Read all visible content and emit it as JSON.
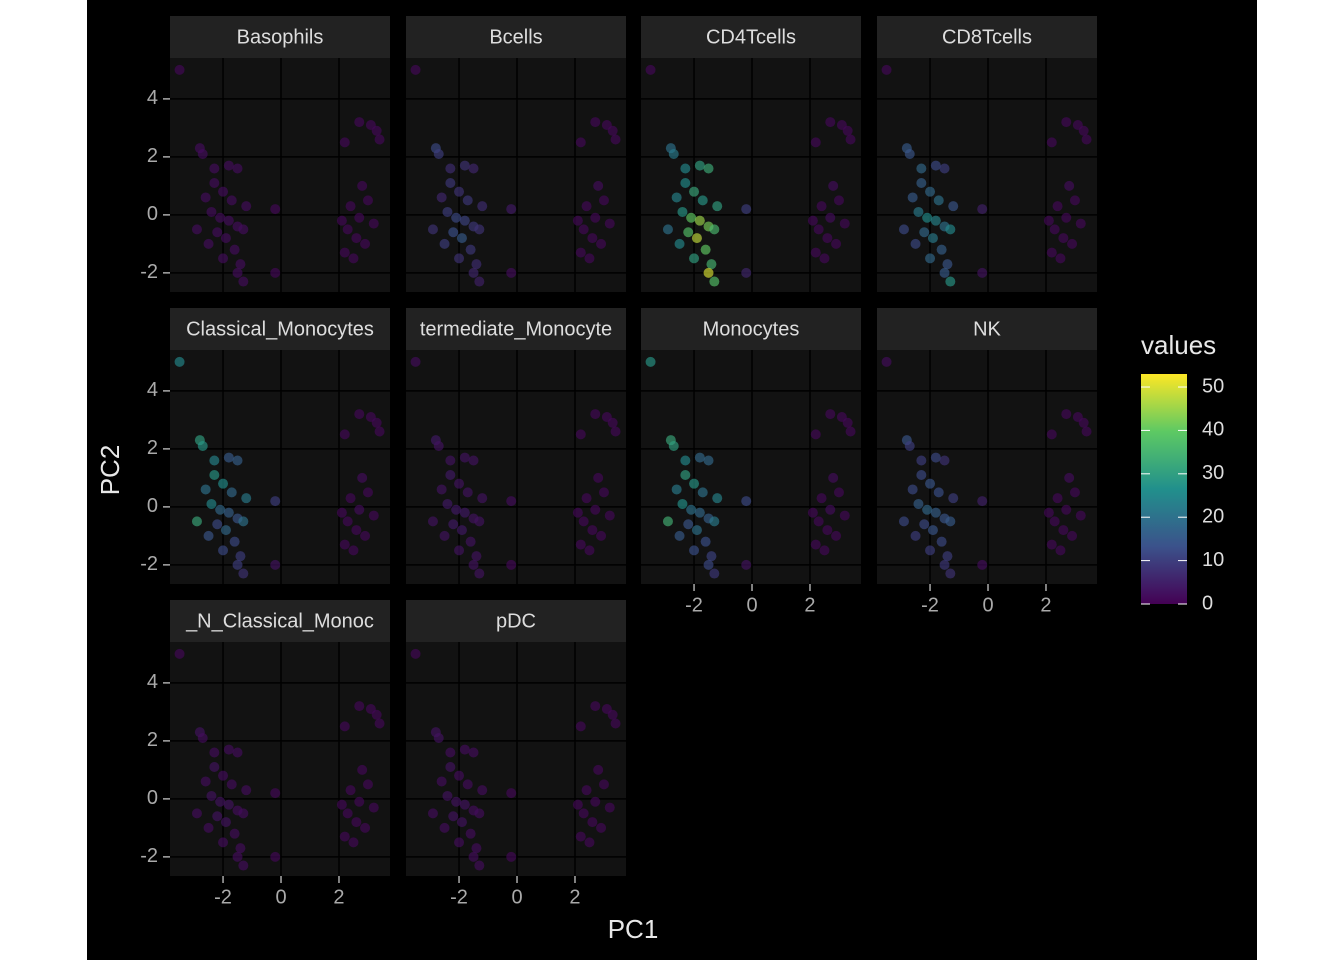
{
  "chart_data": {
    "type": "scatter",
    "xlabel": "PC1",
    "ylabel": "PC2",
    "xlim": [
      -3.83,
      3.76
    ],
    "ylim": [
      -2.66,
      5.41
    ],
    "xticks": [
      -2,
      0,
      2
    ],
    "yticks": [
      -2,
      0,
      2,
      4
    ],
    "grid": true,
    "x": [
      -3.5,
      -2.8,
      -2.7,
      -2.3,
      -1.8,
      -1.5,
      -2.3,
      -2.0,
      -2.6,
      -1.7,
      -1.2,
      -0.2,
      -2.9,
      -2.4,
      -2.1,
      -1.8,
      -1.5,
      -2.2,
      -1.9,
      -1.3,
      -2.5,
      -1.6,
      -1.4,
      -2.0,
      -1.5,
      -1.3,
      -0.2,
      2.7,
      3.1,
      3.3,
      3.4,
      2.2,
      2.8,
      3.0,
      2.4,
      2.7,
      3.2,
      2.3,
      2.6,
      2.9,
      2.2,
      2.5,
      2.1
    ],
    "y": [
      5.0,
      2.3,
      2.1,
      1.6,
      1.7,
      1.6,
      1.1,
      0.8,
      0.6,
      0.5,
      0.3,
      0.2,
      -0.5,
      0.1,
      -0.1,
      -0.2,
      -0.4,
      -0.6,
      -0.8,
      -0.5,
      -1.0,
      -1.2,
      -1.7,
      -1.5,
      -2.0,
      -2.3,
      -2.0,
      3.2,
      3.1,
      2.9,
      2.6,
      2.5,
      1.0,
      0.5,
      0.3,
      -0.1,
      -0.3,
      -0.5,
      -0.8,
      -1.0,
      -1.3,
      -1.5,
      -0.2
    ],
    "colorbar": {
      "title": "values",
      "lim": [
        0,
        53
      ],
      "ticks": [
        0,
        10,
        20,
        30,
        40,
        50
      ]
    },
    "facets": [
      {
        "title": "Basophils",
        "values": [
          1,
          2,
          2,
          2,
          2,
          2,
          2,
          2,
          2,
          2,
          2,
          1,
          2,
          2,
          2,
          2,
          2,
          2,
          2,
          2,
          2,
          2,
          2,
          2,
          2,
          2,
          1,
          1,
          1,
          1,
          1,
          1,
          1,
          1,
          1,
          1,
          1,
          1,
          1,
          1,
          1,
          1,
          1
        ]
      },
      {
        "title": "Bcells",
        "values": [
          1,
          12,
          10,
          7,
          8,
          6,
          9,
          8,
          6,
          9,
          7,
          4,
          8,
          10,
          12,
          11,
          9,
          13,
          15,
          8,
          10,
          9,
          7,
          8,
          6,
          5,
          2,
          1,
          1,
          1,
          1,
          1,
          2,
          1,
          1,
          1,
          1,
          1,
          1,
          1,
          1,
          1,
          1
        ]
      },
      {
        "title": "CD4Tcells",
        "values": [
          1,
          20,
          22,
          25,
          30,
          33,
          26,
          32,
          24,
          28,
          30,
          10,
          20,
          28,
          40,
          45,
          42,
          38,
          48,
          36,
          25,
          40,
          35,
          30,
          50,
          38,
          6,
          1,
          1,
          1,
          1,
          1,
          2,
          1,
          1,
          2,
          1,
          1,
          1,
          1,
          1,
          1,
          1
        ]
      },
      {
        "title": "CD8Tcells",
        "values": [
          1,
          15,
          14,
          18,
          12,
          10,
          16,
          18,
          15,
          20,
          14,
          5,
          12,
          22,
          26,
          24,
          20,
          18,
          22,
          25,
          12,
          16,
          14,
          18,
          15,
          28,
          3,
          1,
          1,
          1,
          1,
          1,
          2,
          1,
          1,
          1,
          1,
          1,
          1,
          1,
          1,
          1,
          1
        ]
      },
      {
        "title": "Classical_Monocytes",
        "values": [
          25,
          30,
          28,
          24,
          15,
          16,
          28,
          26,
          20,
          18,
          22,
          10,
          32,
          25,
          18,
          16,
          14,
          12,
          18,
          20,
          14,
          12,
          10,
          12,
          10,
          8,
          3,
          1,
          1,
          1,
          1,
          1,
          2,
          1,
          1,
          2,
          1,
          1,
          1,
          1,
          1,
          1,
          1
        ]
      },
      {
        "title": "termediate_Monocyte",
        "values": [
          2,
          4,
          3,
          3,
          3,
          3,
          4,
          3,
          3,
          3,
          3,
          2,
          3,
          4,
          4,
          4,
          3,
          4,
          4,
          3,
          3,
          3,
          3,
          3,
          3,
          3,
          1,
          1,
          1,
          1,
          1,
          1,
          1,
          1,
          1,
          1,
          1,
          1,
          1,
          1,
          1,
          1,
          1
        ]
      },
      {
        "title": "Monocytes",
        "values": [
          28,
          32,
          30,
          25,
          18,
          18,
          30,
          28,
          22,
          20,
          24,
          12,
          34,
          27,
          20,
          18,
          16,
          14,
          20,
          22,
          15,
          13,
          11,
          13,
          12,
          9,
          3,
          1,
          1,
          1,
          1,
          1,
          2,
          1,
          1,
          2,
          1,
          1,
          1,
          1,
          1,
          1,
          1
        ]
      },
      {
        "title": "NK",
        "values": [
          2,
          14,
          10,
          10,
          12,
          8,
          12,
          14,
          12,
          13,
          10,
          5,
          12,
          16,
          18,
          16,
          14,
          12,
          14,
          15,
          10,
          12,
          10,
          10,
          9,
          8,
          2,
          1,
          1,
          1,
          1,
          1,
          2,
          1,
          1,
          1,
          1,
          1,
          1,
          1,
          1,
          1,
          1
        ]
      },
      {
        "title": "_N_Classical_Monoc",
        "values": [
          1,
          3,
          2,
          2,
          2,
          2,
          3,
          2,
          2,
          2,
          2,
          1,
          2,
          3,
          3,
          3,
          2,
          3,
          3,
          2,
          2,
          2,
          2,
          2,
          2,
          2,
          1,
          1,
          1,
          1,
          1,
          1,
          1,
          1,
          1,
          1,
          1,
          1,
          1,
          1,
          1,
          1,
          1
        ]
      },
      {
        "title": "pDC",
        "values": [
          1,
          3,
          3,
          2,
          2,
          2,
          3,
          2,
          2,
          2,
          2,
          1,
          2,
          3,
          3,
          3,
          2,
          3,
          3,
          2,
          2,
          2,
          2,
          2,
          2,
          2,
          1,
          1,
          1,
          1,
          1,
          1,
          1,
          1,
          1,
          1,
          1,
          1,
          1,
          1,
          1,
          1,
          1
        ]
      }
    ]
  }
}
